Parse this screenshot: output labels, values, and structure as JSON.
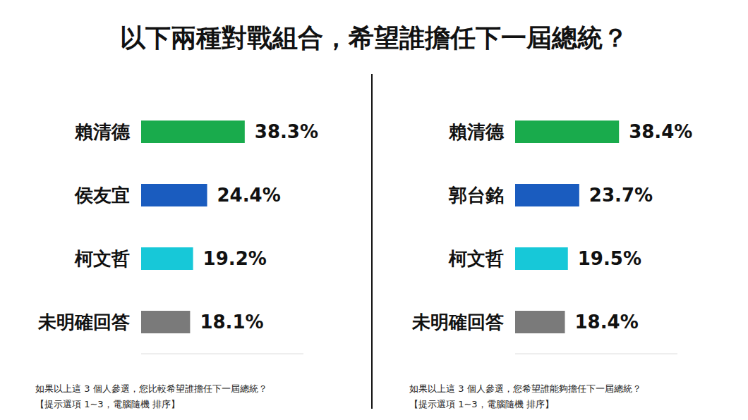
{
  "title": "以下兩種對戰組合，希望誰擔任下一屆總統？",
  "chart_data": [
    {
      "type": "bar",
      "orientation": "horizontal",
      "categories": [
        "賴清德",
        "侯友宜",
        "柯文哲",
        "未明確回答"
      ],
      "values": [
        38.3,
        24.4,
        19.2,
        18.1
      ],
      "value_labels": [
        "38.3%",
        "24.4%",
        "19.2%",
        "18.1%"
      ],
      "colors": [
        "#19ab4c",
        "#1a5cbf",
        "#17c8d8",
        "#7a7a7a"
      ],
      "xlim": [
        0,
        60
      ],
      "data_labels": true,
      "tick_labels": "y",
      "annotations": [
        "如果以上這 3 個人參選，您比較希望誰擔任下一屆總統？",
        "【提示選項 1~3，電腦隨機 排序】"
      ]
    },
    {
      "type": "bar",
      "orientation": "horizontal",
      "categories": [
        "賴清德",
        "郭台銘",
        "柯文哲",
        "未明確回答"
      ],
      "values": [
        38.4,
        23.7,
        19.5,
        18.4
      ],
      "value_labels": [
        "38.4%",
        "23.7%",
        "19.5%",
        "18.4%"
      ],
      "colors": [
        "#19ab4c",
        "#1a5cbf",
        "#17c8d8",
        "#7a7a7a"
      ],
      "xlim": [
        0,
        60
      ],
      "data_labels": true,
      "tick_labels": "y",
      "annotations": [
        "如果以上這 3 個人參選，您希望誰能夠擔任下一屆總統？",
        "【提示選項 1~3，電腦隨機 排序】"
      ]
    }
  ]
}
